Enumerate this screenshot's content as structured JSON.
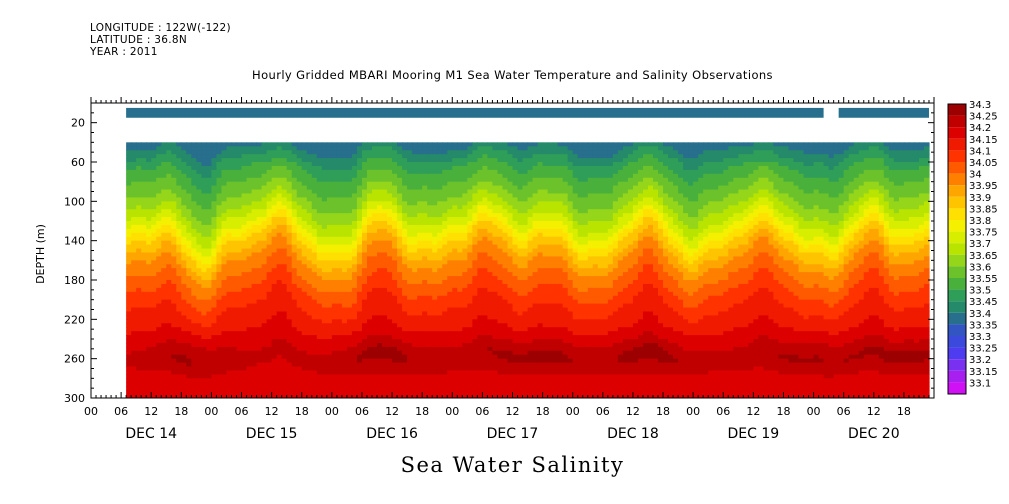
{
  "header": {
    "longitude": "LONGITUDE : 122W(-122)",
    "latitude": "LATITUDE : 36.8N",
    "year": "YEAR : 2011"
  },
  "chart_data": {
    "type": "heatmap",
    "title": "Hourly Gridded MBARI Mooring M1 Sea Water Temperature and Salinity Observations",
    "xlabel": "",
    "ylabel": "DEPTH (m)",
    "variable_label": "Sea Water Salinity",
    "y_axis": {
      "min": 0,
      "max": 300,
      "inverted": true,
      "ticks": [
        20,
        60,
        100,
        140,
        180,
        220,
        260,
        300
      ]
    },
    "x_axis": {
      "hour_tick_labels": [
        "00",
        "06",
        "12",
        "18"
      ],
      "day_labels": [
        "DEC 14",
        "DEC 15",
        "DEC 16",
        "DEC 17",
        "DEC 18",
        "DEC 19",
        "DEC 20"
      ],
      "data_start": "DEC 14 07:00",
      "data_end": "DEC 20 23:00"
    },
    "depth_levels": [
      10,
      40,
      60,
      80,
      100,
      120,
      140,
      160,
      180,
      200,
      220,
      240,
      260,
      280,
      300
    ],
    "surface_layer": {
      "depth": 10,
      "value": 33.35
    },
    "no_data_gaps": [
      {
        "depth": "20–40",
        "note": "no data"
      },
      {
        "depth": 10,
        "from": "DEC 20 02:00",
        "to": "DEC 20 05:00"
      }
    ],
    "typical_profile": {
      "depth": [
        40,
        60,
        80,
        100,
        120,
        140,
        160,
        180,
        200,
        220,
        240,
        260,
        280,
        300
      ],
      "value": [
        33.38,
        33.48,
        33.55,
        33.62,
        33.72,
        33.85,
        33.95,
        34.02,
        34.08,
        34.13,
        34.16,
        34.21,
        34.18,
        34.17
      ]
    },
    "colorbar": {
      "levels": [
        "34.3",
        "34.25",
        "34.2",
        "34.15",
        "34.1",
        "34.05",
        "34",
        "33.95",
        "33.9",
        "33.85",
        "33.8",
        "33.75",
        "33.7",
        "33.65",
        "33.6",
        "33.55",
        "33.5",
        "33.45",
        "33.4",
        "33.35",
        "33.3",
        "33.25",
        "33.2",
        "33.15",
        "33.1"
      ],
      "colors": [
        "#9c0000",
        "#c00000",
        "#dd0000",
        "#f01a00",
        "#ff3300",
        "#ff5a00",
        "#ff7f00",
        "#ffa500",
        "#ffc400",
        "#ffe000",
        "#f5f000",
        "#d8ee00",
        "#b8e400",
        "#95d61a",
        "#6cc22a",
        "#49b03c",
        "#2f9e58",
        "#248a6a",
        "#276f8c",
        "#3355c4",
        "#3b49dc",
        "#4d3cf0",
        "#7a30f0",
        "#a820f0",
        "#d010f5"
      ]
    }
  }
}
